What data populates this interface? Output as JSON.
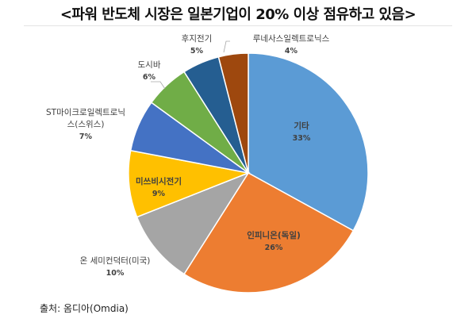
{
  "title": "<파워 반도체 시장은 일본기업이 20% 이상 점유하고 있음>",
  "source": "출처:  옴디아(Omdia)",
  "chart_data": {
    "type": "pie",
    "title": "<파워 반도체 시장은 일본기업이 20% 이상 점유하고 있음>",
    "start_angle_deg": 90,
    "direction": "clockwise",
    "categories": [
      "기타",
      "인피니온(독일)",
      "온 세미컨덕터(미국)",
      "미쓰비시전기",
      "ST마이크로일렉트로닉스(스위스)",
      "도시바",
      "후지전기",
      "루네사스일렉트로닉스"
    ],
    "values": [
      33,
      26,
      10,
      9,
      7,
      6,
      5,
      4
    ],
    "unit": "%",
    "colors": [
      "#5B9BD5",
      "#ED7D31",
      "#A5A5A5",
      "#FFC000",
      "#4472C4",
      "#70AD47",
      "#255E91",
      "#9E480E"
    ],
    "annotations": [
      "출처: 옴디아(Omdia)"
    ]
  },
  "labels": [
    {
      "name": "기타",
      "pct": "33%"
    },
    {
      "name": "인피니온(독일)",
      "pct": "26%"
    },
    {
      "name": "온 세미컨덕터(미국)",
      "pct": "10%"
    },
    {
      "name": "미쓰비시전기",
      "pct": "9%"
    },
    {
      "name": "ST마이크로일렉트로닉",
      "name2": "스(스위스)",
      "pct": "7%"
    },
    {
      "name": "도시바",
      "pct": "6%"
    },
    {
      "name": "후지전기",
      "pct": "5%"
    },
    {
      "name": "루네사스일렉트로닉스",
      "pct": "4%"
    }
  ]
}
